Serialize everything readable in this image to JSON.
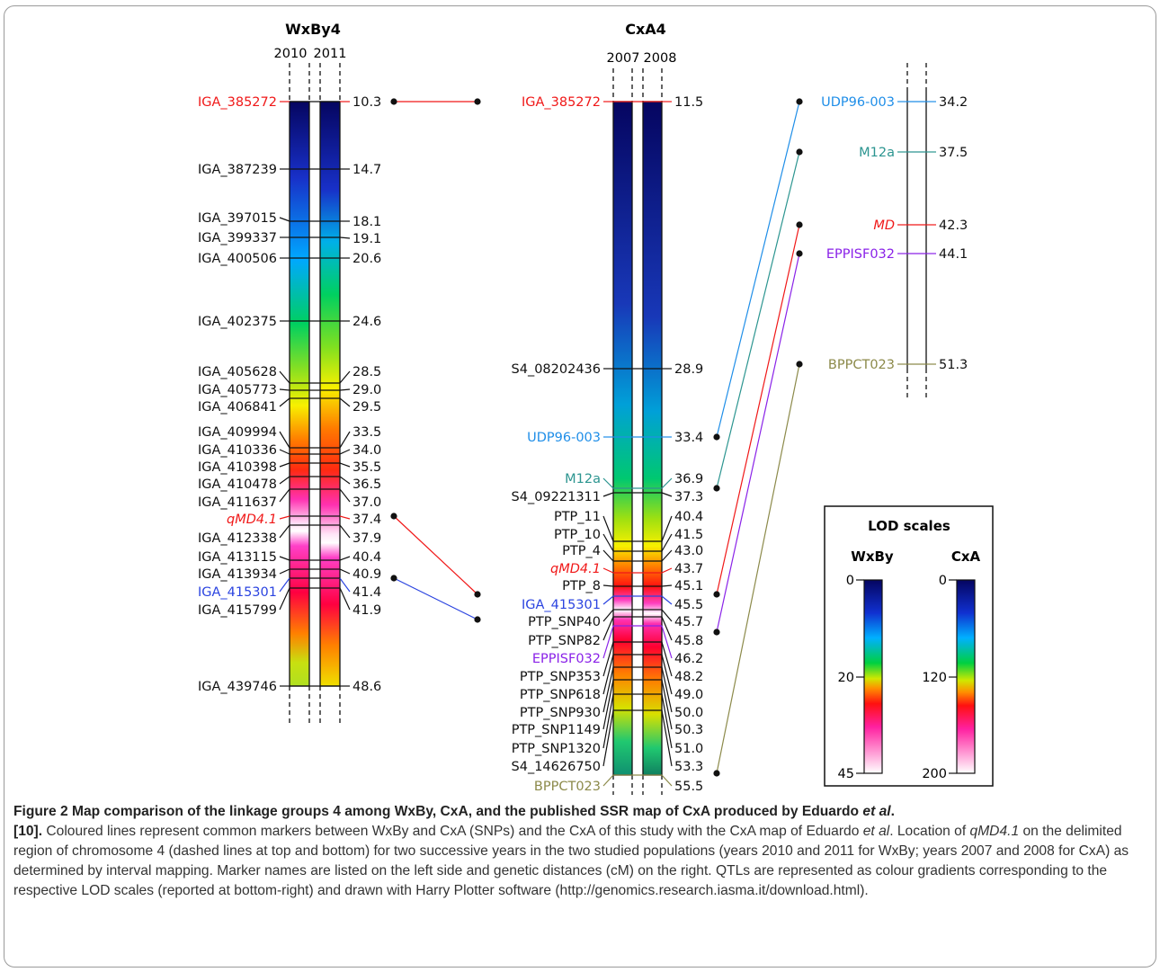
{
  "colors": {
    "red": "#f01818",
    "blue": "#2b44e0",
    "lightblue": "#1f8ee8",
    "teal": "#2c9590",
    "purple": "#8a22e8",
    "olive": "#8c8a4a",
    "black": "#111111"
  },
  "wxby4": {
    "title": "WxBy4",
    "years": [
      "2010",
      "2011"
    ],
    "markers": [
      {
        "name": "IGA_385272",
        "pos": "10.3",
        "color": "red"
      },
      {
        "name": "IGA_387239",
        "pos": "14.7"
      },
      {
        "name": "IGA_397015",
        "pos": "18.1"
      },
      {
        "name": "IGA_399337",
        "pos": "19.1"
      },
      {
        "name": "IGA_400506",
        "pos": "20.6"
      },
      {
        "name": "IGA_402375",
        "pos": "24.6"
      },
      {
        "name": "IGA_405628",
        "pos": "28.5"
      },
      {
        "name": "IGA_405773",
        "pos": "29.0"
      },
      {
        "name": "IGA_406841",
        "pos": "29.5"
      },
      {
        "name": "IGA_409994",
        "pos": "33.5"
      },
      {
        "name": "IGA_410336",
        "pos": "34.0"
      },
      {
        "name": "IGA_410398",
        "pos": "35.5"
      },
      {
        "name": "IGA_410478",
        "pos": "36.5"
      },
      {
        "name": "IGA_411637",
        "pos": "37.0"
      },
      {
        "name": "qMD4.1",
        "pos": "37.4",
        "color": "red",
        "italic": true
      },
      {
        "name": "IGA_412338",
        "pos": "37.9"
      },
      {
        "name": "IGA_413115",
        "pos": "40.4"
      },
      {
        "name": "IGA_413934",
        "pos": "40.9"
      },
      {
        "name": "IGA_415301",
        "pos": "41.4",
        "color": "blue"
      },
      {
        "name": "IGA_415799",
        "pos": "41.9"
      },
      {
        "name": "IGA_439746",
        "pos": "48.6"
      }
    ]
  },
  "cxa4": {
    "title": "CxA4",
    "years": [
      "2007",
      "2008"
    ],
    "markers": [
      {
        "name": "IGA_385272",
        "pos": "11.5",
        "color": "red"
      },
      {
        "name": "S4_08202436",
        "pos": "28.9"
      },
      {
        "name": "UDP96-003",
        "pos": "33.4",
        "color": "lightblue"
      },
      {
        "name": "M12a",
        "pos": "36.9",
        "color": "teal"
      },
      {
        "name": "S4_09221311",
        "pos": "37.3"
      },
      {
        "name": "PTP_11",
        "pos": "40.4"
      },
      {
        "name": "PTP_10",
        "pos": "41.5"
      },
      {
        "name": "PTP_4",
        "pos": "43.0"
      },
      {
        "name": "qMD4.1",
        "pos": "43.7",
        "color": "red",
        "italic": true
      },
      {
        "name": "PTP_8",
        "pos": "45.1"
      },
      {
        "name": "IGA_415301",
        "pos": "45.5",
        "color": "blue"
      },
      {
        "name": "PTP_SNP40",
        "pos": "45.7"
      },
      {
        "name": "PTP_SNP82",
        "pos": "45.8"
      },
      {
        "name": "EPPISF032",
        "pos": "46.2",
        "color": "purple"
      },
      {
        "name": "PTP_SNP353",
        "pos": "48.2"
      },
      {
        "name": "PTP_SNP618",
        "pos": "49.0"
      },
      {
        "name": "PTP_SNP930",
        "pos": "50.0"
      },
      {
        "name": "PTP_SNP1149",
        "pos": "50.3"
      },
      {
        "name": "PTP_SNP1320",
        "pos": "51.0"
      },
      {
        "name": "S4_14626750",
        "pos": "53.3"
      },
      {
        "name": "BPPCT023",
        "pos": "55.5",
        "color": "olive"
      }
    ]
  },
  "ssr_map": {
    "markers": [
      {
        "name": "UDP96-003",
        "pos": "34.2",
        "color": "lightblue"
      },
      {
        "name": "M12a",
        "pos": "37.5",
        "color": "teal"
      },
      {
        "name": "MD",
        "pos": "42.3",
        "color": "red",
        "italic": true
      },
      {
        "name": "EPPISF032",
        "pos": "44.1",
        "color": "purple"
      },
      {
        "name": "BPPCT023",
        "pos": "51.3",
        "color": "olive"
      }
    ]
  },
  "lod": {
    "title": "LOD scales",
    "wxby_label": "WxBy",
    "cxa_label": "CxA",
    "wxby_ticks": [
      "0",
      "20",
      "45"
    ],
    "cxa_ticks": [
      "0",
      "120",
      "200"
    ]
  },
  "caption": {
    "bold_1": "Figure 2 Map comparison of the linkage groups 4 among WxBy, CxA, and the published SSR map of CxA produced by Eduardo ",
    "bold_italic_1": "et al",
    "bold_2": ".",
    "bold_3": "[10].",
    "text_1": " Coloured lines represent common markers between WxBy and CxA (SNPs) and the CxA of this study with the CxA map of Eduardo ",
    "italic_1": "et al",
    "text_2": ". Location of ",
    "italic_2": "qMD4.1",
    "text_3": " on the delimited region of chromosome 4 (dashed lines at top and bottom) for two successive years in the two studied populations (years 2010 and 2011 for WxBy; years 2007 and 2008 for CxA) as determined by interval mapping. Marker names are listed on the left side and genetic distances (cM) on the right. QTLs are represented as colour gradients corresponding to the respective LOD scales (reported at bottom-right) and drawn with Harry Plotter software (http://genomics.research.iasma.it/download.html)."
  }
}
